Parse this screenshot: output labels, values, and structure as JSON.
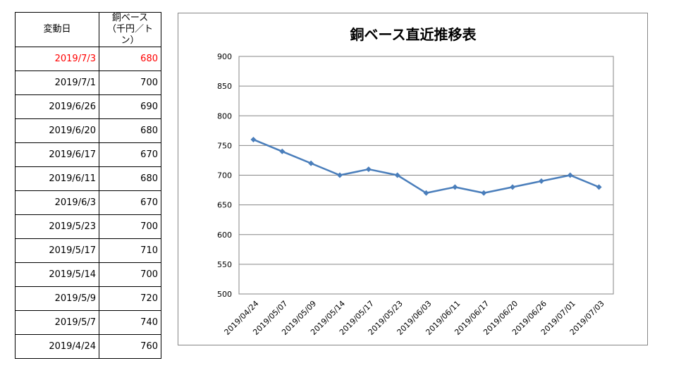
{
  "table": {
    "header_date": "変動日",
    "header_price_line1": "銅ベース",
    "header_price_line2": "（千円／トン）",
    "rows": [
      {
        "date": "2019/7/3",
        "value": "680",
        "highlight": true
      },
      {
        "date": "2019/7/1",
        "value": "700"
      },
      {
        "date": "2019/6/26",
        "value": "690"
      },
      {
        "date": "2019/6/20",
        "value": "680"
      },
      {
        "date": "2019/6/17",
        "value": "670"
      },
      {
        "date": "2019/6/11",
        "value": "680"
      },
      {
        "date": "2019/6/3",
        "value": "670"
      },
      {
        "date": "2019/5/23",
        "value": "700"
      },
      {
        "date": "2019/5/17",
        "value": "710"
      },
      {
        "date": "2019/5/14",
        "value": "700"
      },
      {
        "date": "2019/5/9",
        "value": "720"
      },
      {
        "date": "2019/5/7",
        "value": "740"
      },
      {
        "date": "2019/4/24",
        "value": "760"
      }
    ],
    "highlight_color": "#ff0000"
  },
  "chart_data": {
    "type": "line",
    "title": "銅ベース直近推移表",
    "categories": [
      "2019/04/24",
      "2019/05/07",
      "2019/05/09",
      "2019/05/14",
      "2019/05/17",
      "2019/05/23",
      "2019/06/03",
      "2019/06/11",
      "2019/06/17",
      "2019/06/20",
      "2019/06/26",
      "2019/07/01",
      "2019/07/03"
    ],
    "series": [
      {
        "values": [
          760,
          740,
          720,
          700,
          710,
          700,
          670,
          680,
          670,
          680,
          690,
          700,
          680
        ],
        "color": "#4a7ebb"
      }
    ],
    "ylim": [
      500,
      900
    ],
    "yticks": [
      500,
      550,
      600,
      650,
      700,
      750,
      800,
      850,
      900
    ],
    "grid": true,
    "legend": "none",
    "marker": "diamond"
  }
}
